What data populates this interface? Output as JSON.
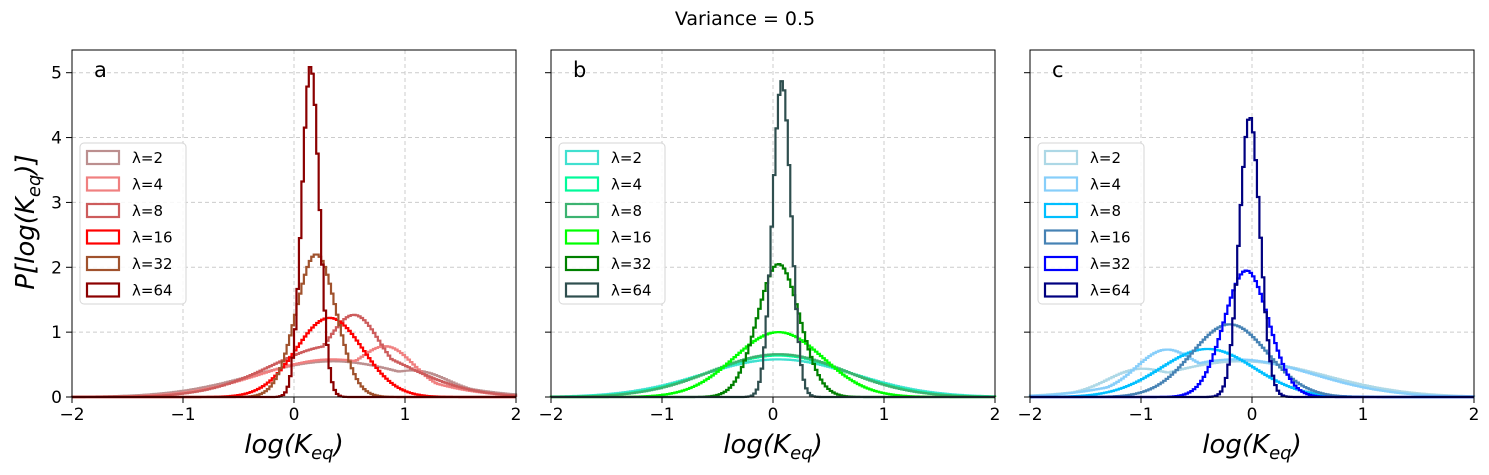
{
  "figure": {
    "suptitle": "Variance = 0.5",
    "ylabel": "P[log(K_eq)]",
    "xlabel": "log(K_eq)"
  },
  "chart_data": [
    {
      "type": "line",
      "panel": "a",
      "xlabel": "log(K_eq)",
      "ylabel": "P[log(K_eq)]",
      "xlim": [
        -2,
        2
      ],
      "ylim": [
        0,
        5.35
      ],
      "xticks": [
        -2,
        -1,
        0,
        1,
        2
      ],
      "yticks": [
        0,
        1,
        2,
        3,
        4,
        5
      ],
      "grid": true,
      "legend_position": "center-left",
      "series": [
        {
          "name": "λ=2",
          "color": "#bc8f8f",
          "mean": 0.35,
          "sd": 0.72,
          "peak": 0.55,
          "shoulder": 1.15,
          "shoulder_h": 0.22
        },
        {
          "name": "λ=4",
          "color": "#f08080",
          "mean": 0.35,
          "sd": 0.65,
          "peak": 0.58,
          "shoulder": 0.85,
          "shoulder_h": 0.52
        },
        {
          "name": "λ=8",
          "color": "#cd5c5c",
          "mean": 0.4,
          "sd": 0.6,
          "peak": 0.8,
          "shoulder": 0.55,
          "shoulder_h": 0.8
        },
        {
          "name": "λ=16",
          "color": "#ff0000",
          "mean": 0.32,
          "sd": 0.3,
          "peak": 1.22
        },
        {
          "name": "λ=32",
          "color": "#a0522d",
          "mean": 0.2,
          "sd": 0.18,
          "peak": 2.2
        },
        {
          "name": "λ=64",
          "color": "#8b0000",
          "mean": 0.15,
          "sd": 0.078,
          "peak": 5.1
        }
      ]
    },
    {
      "type": "line",
      "panel": "b",
      "xlabel": "log(K_eq)",
      "xlim": [
        -2,
        2
      ],
      "ylim": [
        0,
        5.35
      ],
      "xticks": [
        -2,
        -1,
        0,
        1,
        2
      ],
      "yticks": [
        0,
        1,
        2,
        3,
        4,
        5
      ],
      "grid": true,
      "legend_position": "center-left",
      "series": [
        {
          "name": "λ=2",
          "color": "#40e0d0",
          "mean": 0.05,
          "sd": 0.68,
          "peak": 0.58
        },
        {
          "name": "λ=4",
          "color": "#00fa9a",
          "mean": 0.05,
          "sd": 0.62,
          "peak": 0.64
        },
        {
          "name": "λ=8",
          "color": "#3cb371",
          "mean": 0.05,
          "sd": 0.6,
          "peak": 0.66
        },
        {
          "name": "λ=16",
          "color": "#00ff00",
          "mean": 0.05,
          "sd": 0.4,
          "peak": 1.0
        },
        {
          "name": "λ=32",
          "color": "#008000",
          "mean": 0.05,
          "sd": 0.19,
          "peak": 2.05
        },
        {
          "name": "λ=64",
          "color": "#2f4f4f",
          "mean": 0.08,
          "sd": 0.082,
          "peak": 4.87
        }
      ]
    },
    {
      "type": "line",
      "panel": "c",
      "xlabel": "log(K_eq)",
      "xlim": [
        -2,
        2
      ],
      "ylim": [
        0,
        5.35
      ],
      "xticks": [
        -2,
        -1,
        0,
        1,
        2
      ],
      "yticks": [
        0,
        1,
        2,
        3,
        4,
        5
      ],
      "grid": true,
      "legend_position": "center-left",
      "series": [
        {
          "name": "λ=2",
          "color": "#add8e6",
          "mean": -0.1,
          "sd": 0.75,
          "peak": 0.55,
          "shoulder": -1.05,
          "shoulder_h": 0.28
        },
        {
          "name": "λ=4",
          "color": "#87cefa",
          "mean": -0.15,
          "sd": 0.7,
          "peak": 0.58,
          "shoulder": -0.8,
          "shoulder_h": 0.5
        },
        {
          "name": "λ=8",
          "color": "#00bfff",
          "mean": -0.4,
          "sd": 0.42,
          "peak": 0.74
        },
        {
          "name": "λ=16",
          "color": "#4682b4",
          "mean": -0.2,
          "sd": 0.34,
          "peak": 1.12
        },
        {
          "name": "λ=32",
          "color": "#0000ff",
          "mean": -0.05,
          "sd": 0.2,
          "peak": 1.95
        },
        {
          "name": "λ=64",
          "color": "#000080",
          "mean": -0.02,
          "sd": 0.092,
          "peak": 4.32
        }
      ]
    }
  ]
}
